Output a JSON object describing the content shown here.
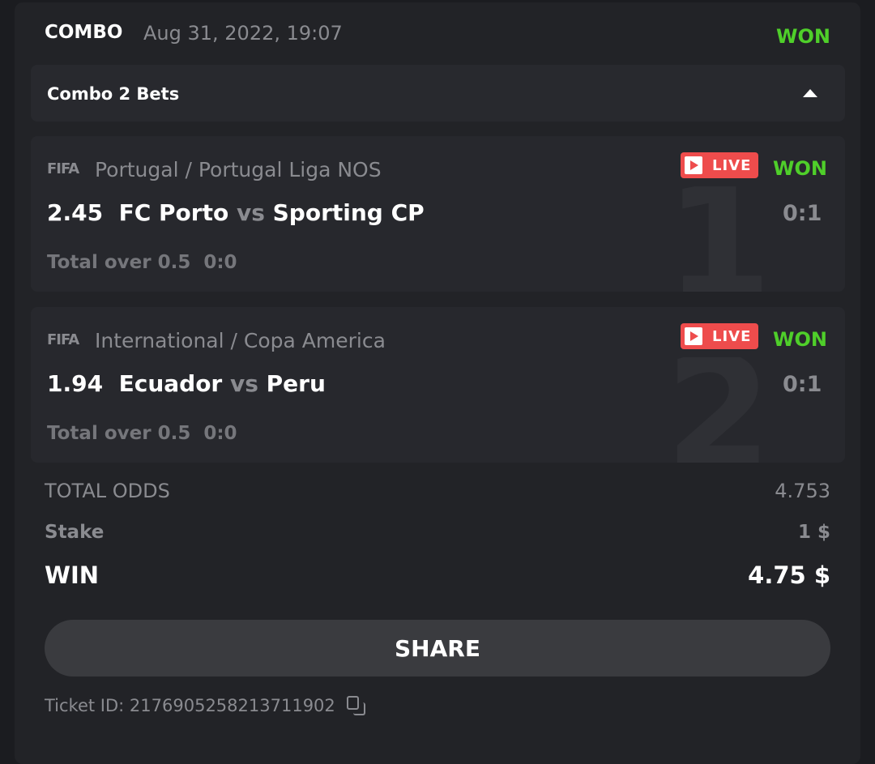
{
  "header": {
    "type": "COMBO",
    "date": "Aug 31, 2022, 19:07",
    "status": "WON"
  },
  "combo": {
    "label": "Combo 2 Bets"
  },
  "bets": [
    {
      "index": "1",
      "sport_icon": "FIFA",
      "league": "Portugal / Portugal Liga NOS",
      "odds": "2.45",
      "home": "FC Porto",
      "vs": "vs",
      "away": "Sporting CP",
      "market": "Total over 0.5",
      "market_score": "0:0",
      "live": "LIVE",
      "status": "WON",
      "score": "0:1"
    },
    {
      "index": "2",
      "sport_icon": "FIFA",
      "league": "International / Copa America",
      "odds": "1.94",
      "home": "Ecuador",
      "vs": "vs",
      "away": "Peru",
      "market": "Total over 0.5",
      "market_score": "0:0",
      "live": "LIVE",
      "status": "WON",
      "score": "0:1"
    }
  ],
  "summary": {
    "total_odds_label": "TOTAL ODDS",
    "total_odds": "4.753",
    "stake_label": "Stake",
    "stake": "1 $",
    "win_label": "WIN",
    "win": "4.75 $"
  },
  "share_label": "SHARE",
  "ticket": "Ticket ID: 2176905258213711902",
  "colors": {
    "won": "#4fcf2a",
    "live": "#ee4c4c",
    "background": "#222327"
  }
}
